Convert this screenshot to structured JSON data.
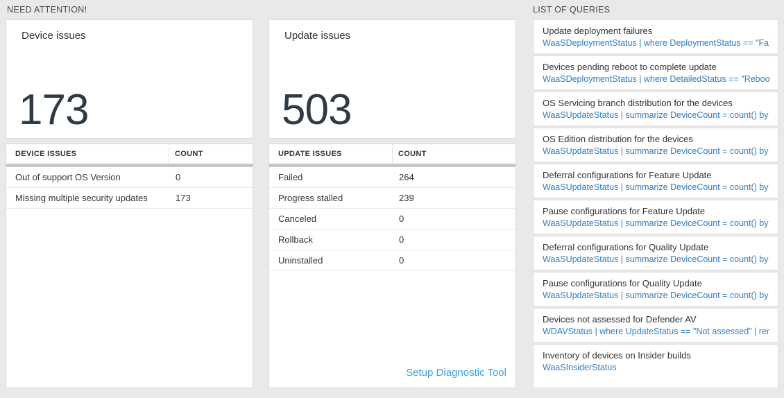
{
  "sections": {
    "need_attention": {
      "title": "NEED ATTENTION!"
    },
    "list_of_queries": {
      "title": "LIST OF QUERIES"
    }
  },
  "device_card": {
    "title": "Device issues",
    "count": "173"
  },
  "device_table": {
    "headers": {
      "issues": "DEVICE ISSUES",
      "count": "COUNT"
    },
    "rows": [
      {
        "label": "Out of support OS Version",
        "count": "0"
      },
      {
        "label": "Missing multiple security updates",
        "count": "173"
      }
    ]
  },
  "update_card": {
    "title": "Update issues",
    "count": "503"
  },
  "update_table": {
    "headers": {
      "issues": "UPDATE ISSUES",
      "count": "COUNT"
    },
    "rows": [
      {
        "label": "Failed",
        "count": "264"
      },
      {
        "label": "Progress stalled",
        "count": "239"
      },
      {
        "label": "Canceled",
        "count": "0"
      },
      {
        "label": "Rollback",
        "count": "0"
      },
      {
        "label": "Uninstalled",
        "count": "0"
      }
    ],
    "footer_link": "Setup Diagnostic Tool"
  },
  "queries": {
    "items": [
      {
        "title": "Update deployment failures",
        "query": "WaaSDeploymentStatus | where DeploymentStatus == \"Failed\" |..."
      },
      {
        "title": "Devices pending reboot to complete update",
        "query": "WaaSDeploymentStatus | where DetailedStatus == \"Reboot pend..."
      },
      {
        "title": "OS Servicing branch distribution for the devices",
        "query": "WaaSUpdateStatus | summarize DeviceCount = count() by OSSer..."
      },
      {
        "title": "OS Edition distribution for the devices",
        "query": "WaaSUpdateStatus | summarize DeviceCount = count() by OSEdit..."
      },
      {
        "title": "Deferral configurations for Feature Update",
        "query": "WaaSUpdateStatus | summarize DeviceCount = count() by Featur..."
      },
      {
        "title": "Pause configurations for Feature Update",
        "query": "WaaSUpdateStatus | summarize DeviceCount = count() by Featur..."
      },
      {
        "title": "Deferral configurations for Quality Update",
        "query": "WaaSUpdateStatus | summarize DeviceCount = count() by Qualit..."
      },
      {
        "title": "Pause configurations for Quality Update",
        "query": "WaaSUpdateStatus | summarize DeviceCount = count() by Qualit..."
      },
      {
        "title": "Devices not assessed for Defender AV",
        "query": "WDAVStatus | where UpdateStatus == \"Not assessed\" | render ta..."
      },
      {
        "title": "Inventory of devices on Insider builds",
        "query": "WaaSInsiderStatus"
      }
    ]
  },
  "colors": {
    "accent_blue": "#2e7dc2",
    "link_blue": "#3ba1dc",
    "page_bg": "#e9e9e9",
    "number_text": "#2e3a45"
  }
}
